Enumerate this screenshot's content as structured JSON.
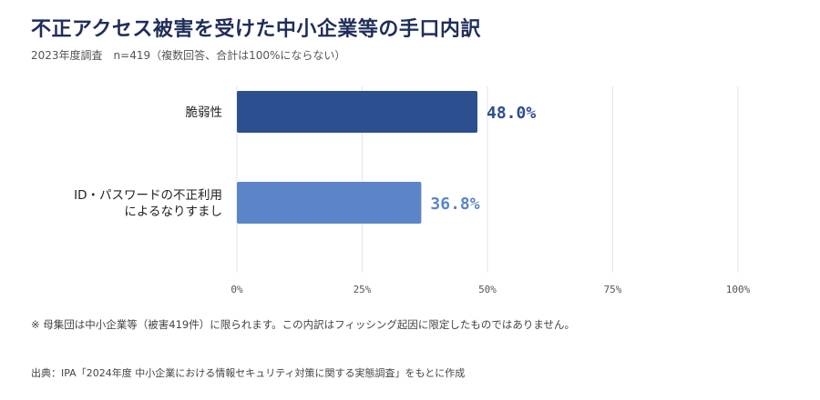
{
  "header": {
    "title": "不正アクセス被害を受けた中小企業等の手口内訳",
    "subtitle": "2023年度調査　n=419（複数回答、合計は100%にならない）"
  },
  "footer": {
    "note": "※ 母集団は中小企業等（被害419件）に限られます。この内訳はフィッシング起因に限定したものではありません。",
    "source": "出典：IPA「2024年度 中小企業における情報セキュリティ対策に関する実態調査」をもとに作成"
  },
  "colors": {
    "bar1": "#2c4f8f",
    "bar2": "#5b85c8",
    "grid": "#e6e6e6"
  },
  "chart_data": {
    "type": "bar",
    "orientation": "horizontal",
    "categories": [
      [
        "脆弱性"
      ],
      [
        "ID・パスワードの不正利用",
        "によるなりすまし"
      ]
    ],
    "values": [
      48.0,
      36.8
    ],
    "value_labels": [
      "48.0%",
      "36.8%"
    ],
    "xlim": [
      0,
      100
    ],
    "xticks": [
      0,
      25,
      50,
      75,
      100
    ],
    "xtick_labels": [
      "0%",
      "25%",
      "50%",
      "75%",
      "100%"
    ],
    "grid": true
  }
}
